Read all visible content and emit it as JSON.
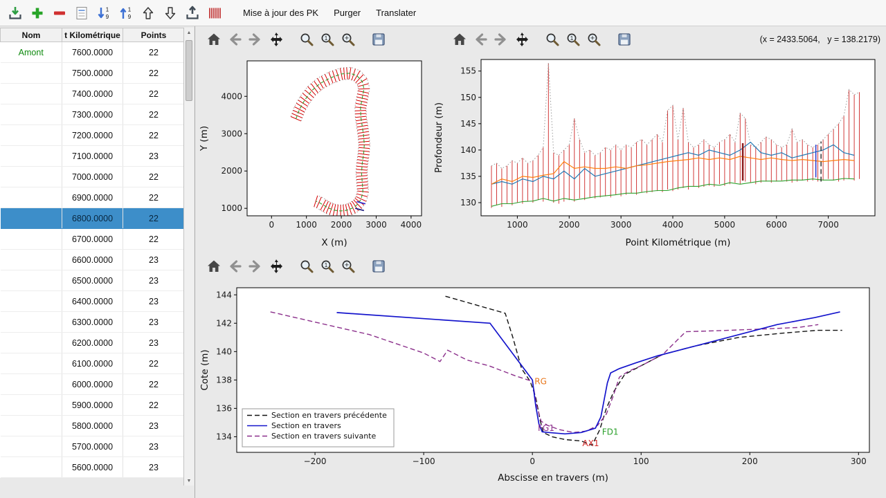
{
  "colors": {
    "selection": "#3d8ec9",
    "amont_green": "#0f8a0f",
    "stem_red": "#cc2222",
    "panel_bg": "#e9e9e9"
  },
  "menubar": {
    "icon_buttons": [
      "import",
      "add",
      "remove",
      "attributes",
      "sort-desc",
      "sort-asc",
      "move-up",
      "move-down",
      "export",
      "sections"
    ],
    "menus": [
      {
        "label": "Mise à jour des PK"
      },
      {
        "label": "Purger"
      },
      {
        "label": "Translater"
      }
    ]
  },
  "table": {
    "columns": [
      {
        "label": "Nom"
      },
      {
        "label": "t Kilométrique"
      },
      {
        "label": "Points"
      }
    ],
    "selected_pk": "6800.0000",
    "rows": [
      {
        "nom": "Amont",
        "pk": "7600.0000",
        "points": "22"
      },
      {
        "nom": "",
        "pk": "7500.0000",
        "points": "22"
      },
      {
        "nom": "",
        "pk": "7400.0000",
        "points": "22"
      },
      {
        "nom": "",
        "pk": "7300.0000",
        "points": "22"
      },
      {
        "nom": "",
        "pk": "7200.0000",
        "points": "22"
      },
      {
        "nom": "",
        "pk": "7100.0000",
        "points": "23"
      },
      {
        "nom": "",
        "pk": "7000.0000",
        "points": "22"
      },
      {
        "nom": "",
        "pk": "6900.0000",
        "points": "22"
      },
      {
        "nom": "",
        "pk": "6800.0000",
        "points": "22"
      },
      {
        "nom": "",
        "pk": "6700.0000",
        "points": "22"
      },
      {
        "nom": "",
        "pk": "6600.0000",
        "points": "23"
      },
      {
        "nom": "",
        "pk": "6500.0000",
        "points": "23"
      },
      {
        "nom": "",
        "pk": "6400.0000",
        "points": "23"
      },
      {
        "nom": "",
        "pk": "6300.0000",
        "points": "23"
      },
      {
        "nom": "",
        "pk": "6200.0000",
        "points": "23"
      },
      {
        "nom": "",
        "pk": "6100.0000",
        "points": "22"
      },
      {
        "nom": "",
        "pk": "6000.0000",
        "points": "22"
      },
      {
        "nom": "",
        "pk": "5900.0000",
        "points": "22"
      },
      {
        "nom": "",
        "pk": "5800.0000",
        "points": "23"
      },
      {
        "nom": "",
        "pk": "5700.0000",
        "points": "23"
      },
      {
        "nom": "",
        "pk": "5600.0000",
        "points": "23"
      }
    ]
  },
  "plot_toolbar": {
    "groups": [
      [
        "home",
        "back",
        "forward",
        "pan"
      ],
      [
        "zoom",
        "zoom-one",
        "zoom-region"
      ],
      [
        "save"
      ]
    ]
  },
  "readout": {
    "coords": "(x = 2433.5064,   y = 138.2179)"
  },
  "chart_data": [
    {
      "type": "line",
      "name": "plan-view",
      "title": "",
      "xlabel": "X (m)",
      "ylabel": "Y (m)",
      "xlim": [
        -700,
        4300
      ],
      "ylim": [
        800,
        4950
      ],
      "xticks": [
        0,
        1000,
        2000,
        3000,
        4000
      ],
      "yticks": [
        1000,
        2000,
        3000,
        4000
      ],
      "plan": {
        "centerline": [
          [
            700,
            3400
          ],
          [
            800,
            3650
          ],
          [
            950,
            3900
          ],
          [
            1150,
            4150
          ],
          [
            1400,
            4350
          ],
          [
            1700,
            4500
          ],
          [
            2000,
            4600
          ],
          [
            2250,
            4620
          ],
          [
            2450,
            4550
          ],
          [
            2600,
            4400
          ],
          [
            2650,
            4200
          ],
          [
            2600,
            3950
          ],
          [
            2550,
            3700
          ],
          [
            2560,
            3450
          ],
          [
            2600,
            3200
          ],
          [
            2640,
            2950
          ],
          [
            2660,
            2700
          ],
          [
            2640,
            2450
          ],
          [
            2600,
            2200
          ],
          [
            2580,
            1950
          ],
          [
            2600,
            1700
          ],
          [
            2620,
            1450
          ],
          [
            2570,
            1250
          ],
          [
            2470,
            1110
          ],
          [
            2330,
            1010
          ],
          [
            2160,
            950
          ],
          [
            1980,
            930
          ],
          [
            1800,
            950
          ],
          [
            1630,
            1010
          ],
          [
            1480,
            1090
          ],
          [
            1360,
            1160
          ],
          [
            1270,
            1190
          ]
        ],
        "half_width": 160,
        "tick_spacing": 100,
        "tick_color": "#d40000",
        "centerline_color": "#2ca02c",
        "edge_color": "#8f8f8f",
        "extra_segments": [
          {
            "x1": 2440,
            "y1": 1180,
            "x2": 2690,
            "y2": 1120,
            "color": "#2b2bd0"
          },
          {
            "x1": 2400,
            "y1": 1000,
            "x2": 2650,
            "y2": 940,
            "color": "#1a1a80"
          }
        ]
      }
    },
    {
      "type": "line",
      "name": "longitudinal-profile",
      "title": "",
      "xlabel": "Point Kilométrique (m)",
      "ylabel": "Profondeur (m)",
      "xlim": [
        300,
        7900
      ],
      "ylim": [
        127.5,
        157.2
      ],
      "xticks": [
        1000,
        2000,
        3000,
        4000,
        5000,
        6000,
        7000
      ],
      "yticks": [
        130,
        135,
        140,
        145,
        150,
        155
      ],
      "stems": {
        "x_start": 500,
        "x_step": 100,
        "color": "#cc2222",
        "top_line_color": "#9a9a9a",
        "top": [
          137.0,
          137.5,
          136.5,
          137.0,
          138.0,
          137.5,
          138.5,
          137.5,
          138.0,
          139.0,
          140.5,
          156.5,
          139.5,
          139.0,
          140.0,
          141.0,
          146.0,
          142.0,
          139.5,
          140.0,
          139.0,
          139.5,
          140.5,
          140.0,
          141.0,
          140.0,
          141.0,
          140.5,
          141.5,
          142.0,
          141.0,
          142.0,
          143.0,
          141.5,
          147.5,
          148.5,
          142.0,
          148.0,
          141.5,
          140.5,
          141.0,
          142.0,
          141.0,
          140.5,
          141.5,
          142.0,
          143.0,
          141.5,
          147.0,
          146.0,
          141.0,
          140.5,
          141.5,
          142.5,
          142.0,
          141.0,
          140.5,
          141.0,
          144.0,
          141.5,
          142.0,
          141.0,
          140.5,
          141.0,
          142.0,
          143.0,
          144.0,
          145.0,
          146.5,
          151.5,
          150.5,
          151.0
        ],
        "bottom": [
          129.0,
          129.5,
          129.2,
          129.8,
          129.5,
          130.0,
          129.8,
          130.2,
          130.0,
          130.5,
          130.2,
          130.5,
          130.0,
          129.8,
          130.2,
          130.5,
          130.2,
          130.8,
          130.5,
          131.0,
          130.8,
          131.0,
          131.2,
          131.0,
          131.5,
          131.2,
          131.5,
          131.8,
          131.5,
          132.0,
          131.8,
          132.0,
          132.2,
          132.0,
          132.5,
          132.2,
          132.5,
          132.8,
          132.5,
          133.0,
          132.8,
          133.0,
          133.2,
          133.0,
          133.5,
          133.2,
          133.5,
          133.8,
          133.5,
          134.0,
          133.8,
          133.5,
          133.8,
          134.0,
          133.8,
          134.0,
          134.2,
          134.0,
          133.8,
          134.0,
          134.2,
          134.0,
          134.2,
          134.0,
          134.2,
          134.5,
          134.2,
          134.0,
          134.2,
          134.5,
          134.2,
          134.5
        ]
      },
      "series": [
        {
          "name": "ligne-bleue",
          "color": "#1f77b4",
          "width": 1.2,
          "x_start": 500,
          "x_step": 200,
          "values": [
            133.5,
            134.0,
            133.5,
            134.5,
            134.0,
            135.0,
            134.5,
            136.0,
            134.5,
            136.5,
            135.0,
            135.5,
            136.0,
            136.5,
            137.0,
            137.5,
            138.0,
            138.5,
            139.0,
            139.5,
            139.0,
            140.0,
            139.5,
            139.0,
            140.0,
            141.5,
            139.5,
            139.0,
            139.5,
            138.5,
            139.0,
            139.5,
            140.0,
            141.0,
            139.5,
            139.0
          ]
        },
        {
          "name": "ligne-orange",
          "color": "#ff7f0e",
          "width": 1.2,
          "x_start": 500,
          "x_step": 200,
          "values": [
            133.5,
            134.5,
            134.0,
            135.0,
            134.8,
            135.2,
            135.5,
            137.8,
            136.5,
            136.8,
            136.5,
            136.5,
            136.8,
            136.5,
            137.0,
            137.2,
            137.5,
            137.8,
            138.0,
            138.2,
            138.5,
            138.2,
            138.5,
            138.2,
            138.8,
            138.5,
            138.2,
            138.5,
            138.2,
            138.0,
            138.2,
            138.0,
            137.8,
            138.0,
            138.2,
            138.0
          ]
        },
        {
          "name": "ligne-verte",
          "color": "#2ca02c",
          "width": 1.1,
          "x_start": 500,
          "x_step": 200,
          "values": [
            129.3,
            129.8,
            129.8,
            130.2,
            130.3,
            130.8,
            130.3,
            130.8,
            130.5,
            130.8,
            131.1,
            131.3,
            131.5,
            131.8,
            131.8,
            132.1,
            132.3,
            132.3,
            132.8,
            133.1,
            133.1,
            133.5,
            133.3,
            133.8,
            133.5,
            133.8,
            134.1,
            134.1,
            134.1,
            134.3,
            134.3,
            134.5,
            134.3,
            134.3,
            134.6,
            134.5
          ]
        }
      ],
      "markers": [
        {
          "x": 5350,
          "y1": 134.2,
          "y2": 141.3,
          "color": "#8b1a1a",
          "width": 2.5
        },
        {
          "x": 6760,
          "y1": 134.8,
          "y2": 141.0,
          "color": "#2233cc",
          "width": 1.5
        },
        {
          "x": 6860,
          "y1": 134.0,
          "y2": 141.6,
          "color": "#111111",
          "dash": "dashed",
          "width": 1.3
        }
      ]
    },
    {
      "type": "line",
      "name": "cross-section",
      "title": "",
      "xlabel": "Abscisse en travers (m)",
      "ylabel": "Cote (m)",
      "xlim": [
        -272,
        310
      ],
      "ylim": [
        132.9,
        144.5
      ],
      "xticks": [
        -200,
        -100,
        0,
        100,
        200,
        300
      ],
      "yticks": [
        134,
        136,
        138,
        140,
        142,
        144
      ],
      "series": [
        {
          "name": "Section en travers précédente",
          "color": "#111111",
          "dash": "dashed",
          "width": 1.4,
          "points": [
            [
              -80,
              143.9
            ],
            [
              -25,
              142.7
            ],
            [
              -18,
              141.0
            ],
            [
              -10,
              138.8
            ],
            [
              -2,
              137.9
            ],
            [
              3,
              136.8
            ],
            [
              7,
              135.2
            ],
            [
              10,
              134.3
            ],
            [
              18,
              134.0
            ],
            [
              30,
              133.8
            ],
            [
              45,
              133.7
            ],
            [
              55,
              133.4
            ],
            [
              62,
              134.5
            ],
            [
              68,
              136.0
            ],
            [
              75,
              137.2
            ],
            [
              85,
              138.4
            ],
            [
              100,
              139.0
            ],
            [
              120,
              139.8
            ],
            [
              150,
              140.4
            ],
            [
              190,
              141.0
            ],
            [
              230,
              141.3
            ],
            [
              262,
              141.5
            ],
            [
              285,
              141.5
            ]
          ]
        },
        {
          "name": "Section en travers suivante",
          "color": "#8b2f8b",
          "dash": "dashed",
          "width": 1.4,
          "points": [
            [
              -241,
              142.8
            ],
            [
              -150,
              141.2
            ],
            [
              -100,
              139.9
            ],
            [
              -85,
              139.3
            ],
            [
              -78,
              140.1
            ],
            [
              -60,
              139.4
            ],
            [
              -40,
              139.0
            ],
            [
              -16,
              138.3
            ],
            [
              0,
              137.9
            ],
            [
              4,
              136.2
            ],
            [
              8,
              135.1
            ],
            [
              14,
              134.8
            ],
            [
              25,
              134.5
            ],
            [
              38,
              134.3
            ],
            [
              50,
              134.4
            ],
            [
              60,
              134.8
            ],
            [
              68,
              135.6
            ],
            [
              74,
              136.8
            ],
            [
              80,
              138.2
            ],
            [
              88,
              138.6
            ],
            [
              100,
              139.0
            ],
            [
              120,
              139.8
            ],
            [
              141,
              141.4
            ],
            [
              180,
              141.5
            ],
            [
              215,
              141.6
            ],
            [
              245,
              141.7
            ],
            [
              263,
              141.9
            ]
          ]
        },
        {
          "name": "Section en travers",
          "color": "#1414cc",
          "width": 1.7,
          "points": [
            [
              -180,
              142.75
            ],
            [
              -39,
              142.0
            ],
            [
              0,
              138.0
            ],
            [
              3,
              136.2
            ],
            [
              6,
              134.9
            ],
            [
              9,
              134.35
            ],
            [
              15,
              134.3
            ],
            [
              30,
              134.2
            ],
            [
              45,
              134.3
            ],
            [
              58,
              134.6
            ],
            [
              63,
              135.4
            ],
            [
              66,
              136.6
            ],
            [
              69,
              137.8
            ],
            [
              72,
              138.5
            ],
            [
              80,
              138.8
            ],
            [
              95,
              139.2
            ],
            [
              115,
              139.7
            ],
            [
              145,
              140.3
            ],
            [
              185,
              141.1
            ],
            [
              225,
              141.9
            ],
            [
              260,
              142.4
            ],
            [
              283,
              142.8
            ]
          ]
        }
      ],
      "legend": {
        "entries": [
          {
            "label": "Section en travers précédente",
            "color": "#111111",
            "dash": "dashed"
          },
          {
            "label": "Section en travers",
            "color": "#1414cc"
          },
          {
            "label": "Section en travers suivante",
            "color": "#8b2f8b",
            "dash": "dashed"
          }
        ]
      },
      "annotations": [
        {
          "text": "RG",
          "x": 2,
          "y": 137.7,
          "color": "#e8761b"
        },
        {
          "text": "FG1",
          "x": 5,
          "y": 134.4,
          "color": "#8b2f8b"
        },
        {
          "text": "AX1",
          "x": 46,
          "y": 133.35,
          "color": "#d42a2a"
        },
        {
          "text": "FD1",
          "x": 64,
          "y": 134.15,
          "color": "#2ca02c"
        }
      ]
    }
  ]
}
